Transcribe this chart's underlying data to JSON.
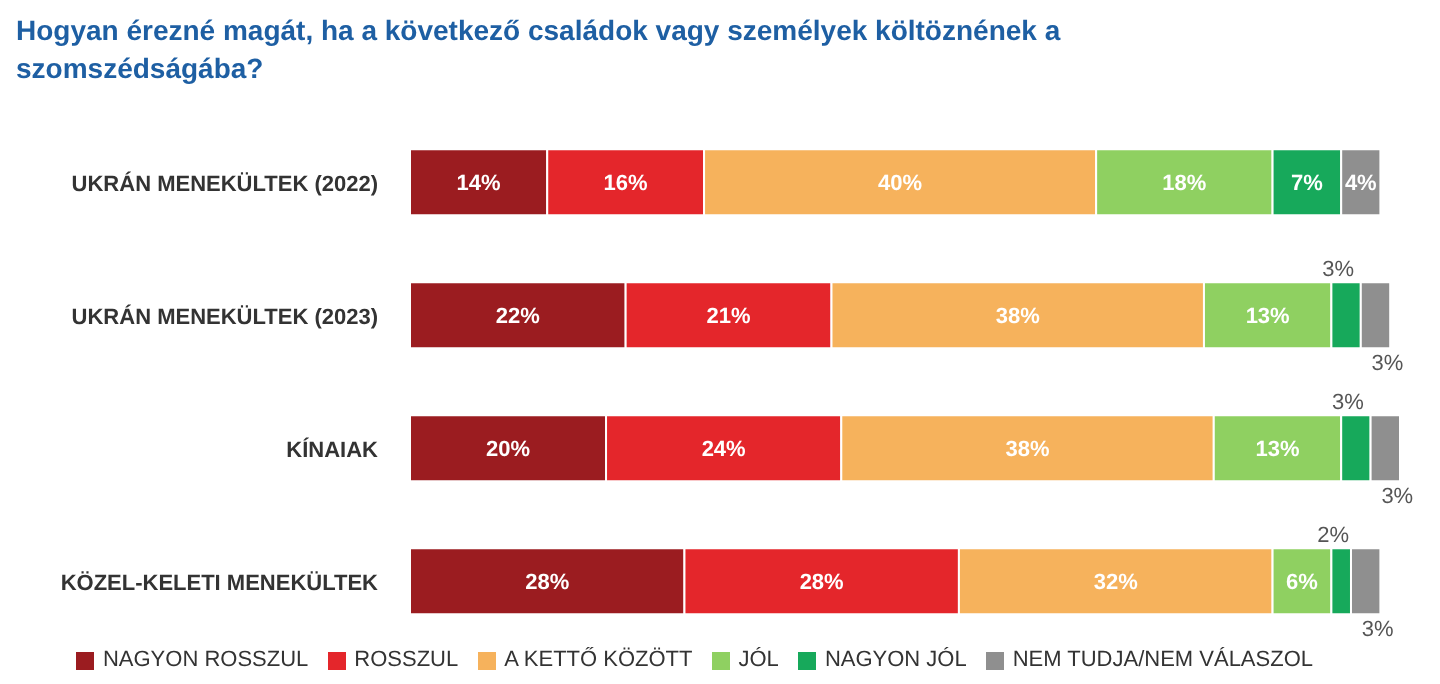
{
  "chart_data": {
    "type": "bar",
    "orientation": "horizontal",
    "stacked": true,
    "title": "Hogyan érezné magát, ha a következő családok vagy személyek költöznének a szomszédságába?",
    "categories": [
      "UKRÁN MENEKÜLTEK (2022)",
      "UKRÁN MENEKÜLTEK (2023)",
      "KÍNAIAK",
      "KÖZEL-KELETI MENEKÜLTEK"
    ],
    "legend": "bottom",
    "tick_labels": "y",
    "series": [
      {
        "name": "NAGYON ROSSZUL",
        "color": "#9b1c20",
        "values": [
          14,
          22,
          20,
          28
        ],
        "value_labels": [
          "14%",
          "22%",
          "20%",
          "28%"
        ]
      },
      {
        "name": "ROSSZUL",
        "color": "#e4262b",
        "values": [
          16,
          21,
          24,
          28
        ],
        "value_labels": [
          "16%",
          "21%",
          "24%",
          "28%"
        ]
      },
      {
        "name": "A KETTŐ KÖZÖTT",
        "color": "#f6b25c",
        "values": [
          40,
          38,
          38,
          32
        ],
        "value_labels": [
          "40%",
          "38%",
          "38%",
          "32%"
        ]
      },
      {
        "name": "JÓL",
        "color": "#8fd061",
        "values": [
          18,
          13,
          13,
          6
        ],
        "value_labels": [
          "18%",
          "13%",
          "13%",
          "6%"
        ]
      },
      {
        "name": "NAGYON JÓL",
        "color": "#17a95b",
        "values": [
          7,
          3,
          3,
          2
        ],
        "value_labels": [
          "7%",
          "3%",
          "3%",
          "2%"
        ]
      },
      {
        "name": "NEM TUDJA/NEM VÁLASZOL",
        "color": "#8f8f8f",
        "values": [
          4,
          3,
          3,
          3
        ],
        "value_labels": [
          "4%",
          "3%",
          "3%",
          "3%"
        ]
      }
    ]
  }
}
